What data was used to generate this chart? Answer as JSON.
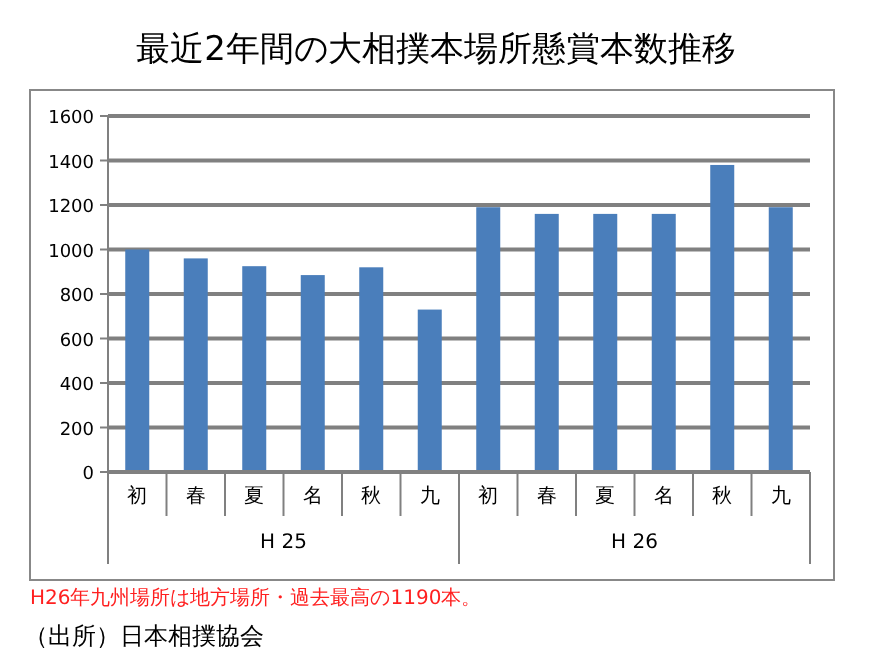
{
  "chart_data": {
    "type": "bar",
    "title": "最近2年間の大相撲本場所懸賞本数推移",
    "categories": [
      "初",
      "春",
      "夏",
      "名",
      "秋",
      "九",
      "初",
      "春",
      "夏",
      "名",
      "秋",
      "九"
    ],
    "values": [
      1000,
      960,
      925,
      885,
      920,
      730,
      1190,
      1160,
      1160,
      1160,
      1380,
      1190
    ],
    "color": "#4a7ebb",
    "ylim": [
      0,
      1600
    ],
    "yticks": [
      0,
      200,
      400,
      600,
      800,
      1000,
      1200,
      1400,
      1600
    ],
    "grid": "y",
    "annotations": [
      "H 25",
      "H 26",
      "H26年九州場所は地方場所・過去最高の1190本。",
      "（出所）日本相撲協会"
    ]
  }
}
